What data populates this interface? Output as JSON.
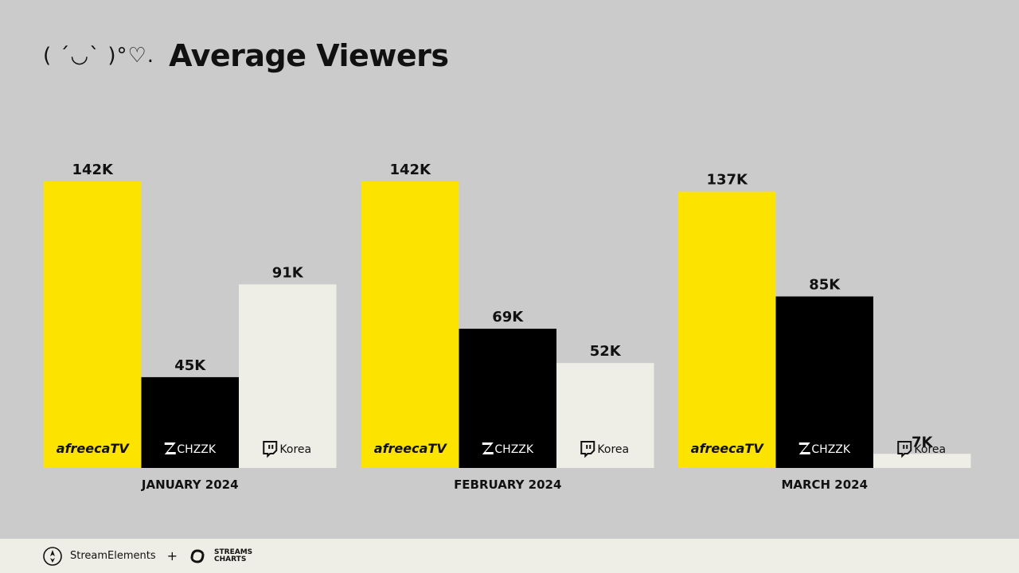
{
  "header": {
    "kaomoji": "( ´◡` )°♡.",
    "title": "Average Viewers"
  },
  "chart_data": {
    "type": "bar",
    "title": "Average Viewers",
    "categories": [
      "JANUARY 2024",
      "FEBRUARY 2024",
      "MARCH 2024"
    ],
    "series": [
      {
        "name": "afreecaTV",
        "color": "#fce300",
        "label_color": "#111111",
        "values": [
          142,
          142,
          137
        ],
        "labels": [
          "142K",
          "142K",
          "137K"
        ]
      },
      {
        "name": "CHZZK",
        "color": "#000000",
        "label_color": "#ffffff",
        "values": [
          45,
          69,
          85
        ],
        "labels": [
          "45K",
          "69K",
          "85K"
        ]
      },
      {
        "name": "Korea",
        "color": "#eeede6",
        "label_color": "#111111",
        "values": [
          91,
          52,
          7
        ],
        "labels": [
          "91K",
          "52K",
          "7K"
        ]
      }
    ],
    "ylim": [
      0,
      142
    ],
    "grid": false,
    "legend": "none"
  },
  "footer": {
    "brand1": "StreamElements",
    "plus": "+",
    "brand2_line1": "STREAMS",
    "brand2_line2": "CHARTS"
  }
}
